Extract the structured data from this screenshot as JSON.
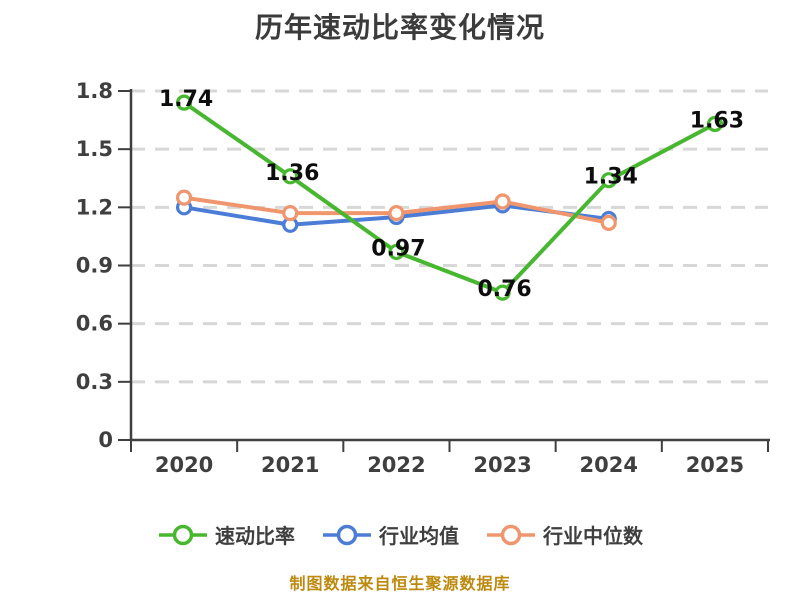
{
  "chart_data": {
    "type": "line",
    "title": "历年速动比率变化情况",
    "categories": [
      "2020",
      "2021",
      "2022",
      "2023",
      "2024",
      "2025"
    ],
    "ylim": [
      0,
      1.8
    ],
    "y_ticks": [
      0,
      0.3,
      0.6,
      0.9,
      1.2,
      1.5,
      1.8
    ],
    "grid": "horizontal-dashed",
    "legend_position": "bottom",
    "series": [
      {
        "name": "速动比率",
        "color": "#46b72e",
        "values": [
          1.74,
          1.36,
          0.97,
          0.76,
          1.34,
          1.63
        ],
        "data_labels": [
          "1.74",
          "1.36",
          "0.97",
          "0.76",
          "1.34",
          "1.63"
        ]
      },
      {
        "name": "行业均值",
        "color": "#4b7dd7",
        "values": [
          1.2,
          1.11,
          1.15,
          1.21,
          1.14,
          null
        ]
      },
      {
        "name": "行业中位数",
        "color": "#f0966e",
        "values": [
          1.25,
          1.17,
          1.17,
          1.23,
          1.12,
          null
        ]
      }
    ],
    "footer": "制图数据来自恒生聚源数据库",
    "footer_color": "#bd8a10",
    "axis_color": "#3f3f3f",
    "grid_color": "#d7d7d7"
  }
}
